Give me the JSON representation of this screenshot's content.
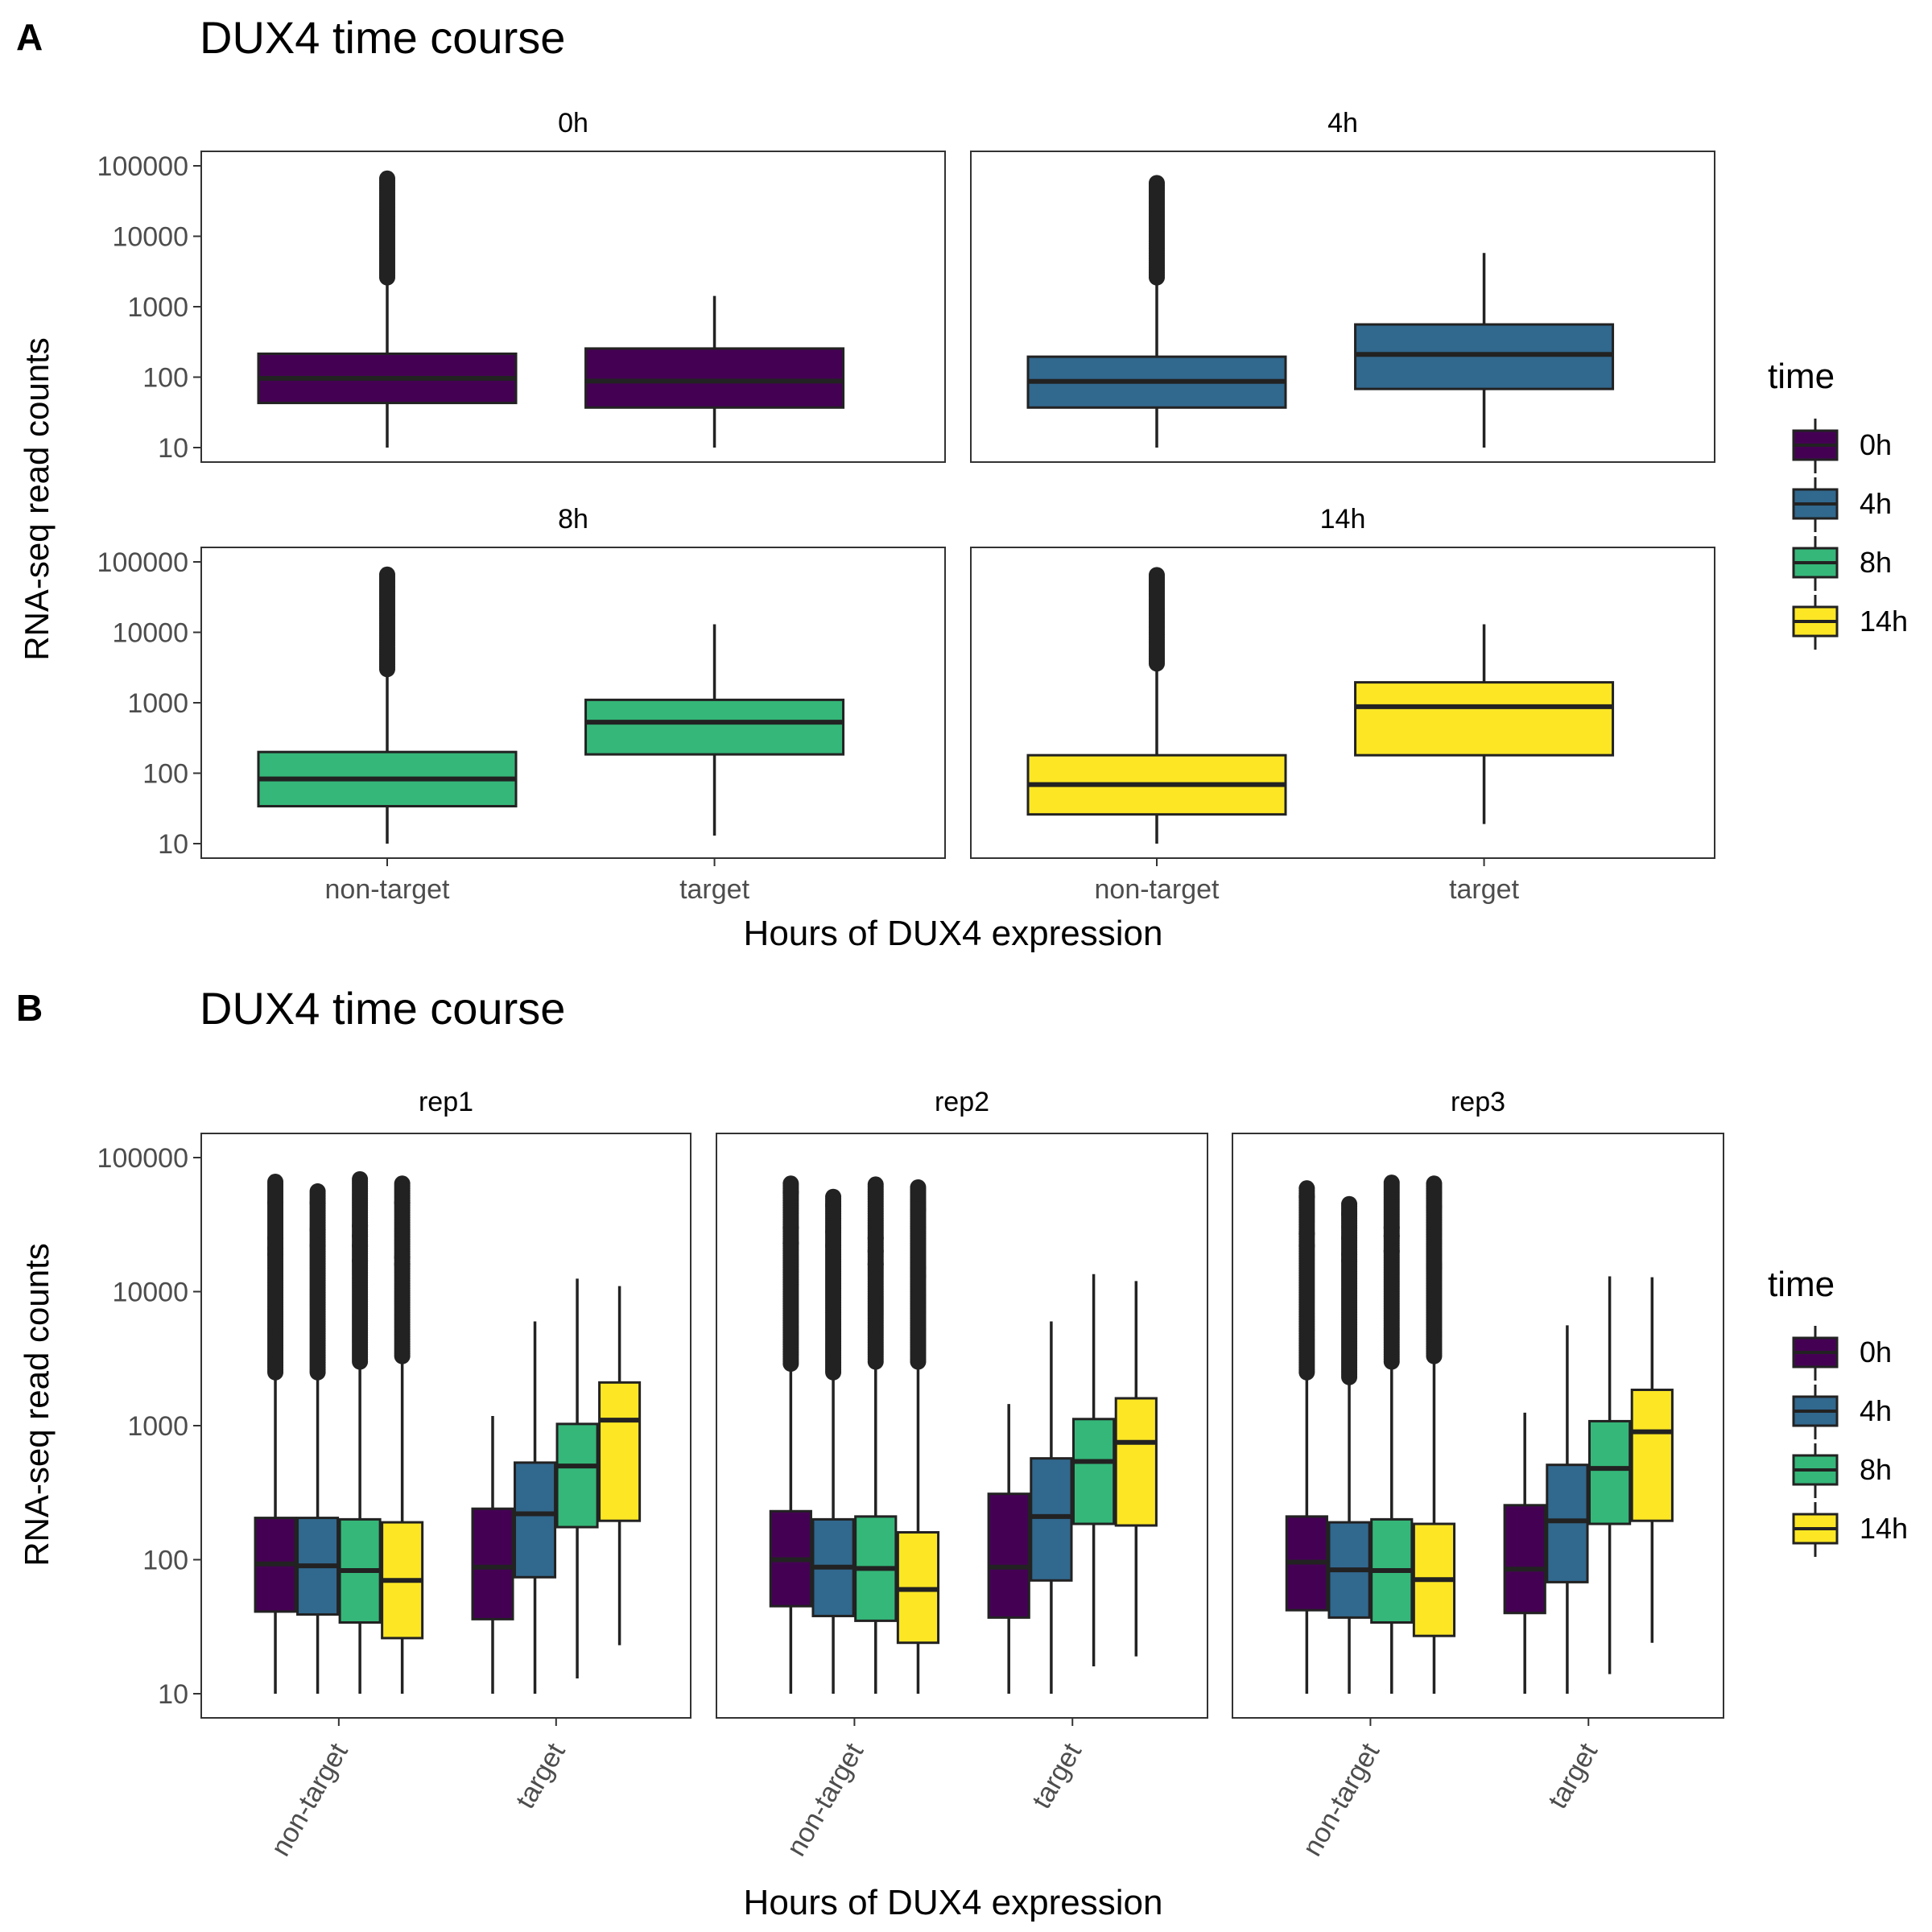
{
  "panels": [
    {
      "letter": "A",
      "title": "DUX4 time course",
      "xlabel": "Hours of DUX4 expression",
      "ylabel": "RNA-seq read counts",
      "legend": {
        "title": "time",
        "entries": [
          {
            "label": "0h",
            "color": "#440154"
          },
          {
            "label": "4h",
            "color": "#31688E"
          },
          {
            "label": "8h",
            "color": "#35B779"
          },
          {
            "label": "14h",
            "color": "#FDE725"
          }
        ]
      }
    },
    {
      "letter": "B",
      "title": "DUX4 time course",
      "xlabel": "Hours of DUX4 expression",
      "ylabel": "RNA-seq read counts",
      "legend": {
        "title": "time",
        "entries": [
          {
            "label": "0h",
            "color": "#440154"
          },
          {
            "label": "4h",
            "color": "#31688E"
          },
          {
            "label": "8h",
            "color": "#35B779"
          },
          {
            "label": "14h",
            "color": "#FDE725"
          }
        ]
      }
    }
  ],
  "chart_data": [
    {
      "type": "boxplot",
      "panel": "A",
      "title": "DUX4 time course",
      "xlabel": "Hours of DUX4 expression",
      "ylabel": "RNA-seq read counts",
      "y_scale": "log10",
      "ylim": [
        10,
        100000
      ],
      "y_ticks": [
        "10",
        "100",
        "1000",
        "10000",
        "100000"
      ],
      "categories": [
        "non-target",
        "target"
      ],
      "grid": false,
      "legend_position": "right",
      "facets": [
        {
          "label": "0h",
          "boxes": [
            {
              "category": "non-target",
              "time": "0h",
              "min": 10,
              "q1": 43,
              "median": 96,
              "q3": 215,
              "max": 2450,
              "outlier_min": 2600,
              "outlier_max": 66000
            },
            {
              "category": "target",
              "time": "0h",
              "min": 10,
              "q1": 37,
              "median": 88,
              "q3": 255,
              "max": 1420
            }
          ]
        },
        {
          "label": "4h",
          "boxes": [
            {
              "category": "non-target",
              "time": "4h",
              "min": 10,
              "q1": 37,
              "median": 87,
              "q3": 195,
              "max": 2400,
              "outlier_min": 2600,
              "outlier_max": 57000
            },
            {
              "category": "target",
              "time": "4h",
              "min": 10,
              "q1": 68,
              "median": 210,
              "q3": 560,
              "max": 5800
            }
          ]
        },
        {
          "label": "8h",
          "boxes": [
            {
              "category": "non-target",
              "time": "8h",
              "min": 10,
              "q1": 34,
              "median": 83,
              "q3": 200,
              "max": 2700,
              "outlier_min": 3000,
              "outlier_max": 66000
            },
            {
              "category": "target",
              "time": "8h",
              "min": 13,
              "q1": 185,
              "median": 530,
              "q3": 1100,
              "max": 13000
            }
          ]
        },
        {
          "label": "14h",
          "boxes": [
            {
              "category": "non-target",
              "time": "14h",
              "min": 10,
              "q1": 26,
              "median": 69,
              "q3": 180,
              "max": 3300,
              "outlier_min": 3600,
              "outlier_max": 65000
            },
            {
              "category": "target",
              "time": "14h",
              "min": 19,
              "q1": 180,
              "median": 880,
              "q3": 1950,
              "max": 13000
            }
          ]
        }
      ]
    },
    {
      "type": "boxplot",
      "panel": "B",
      "title": "DUX4 time course",
      "xlabel": "Hours of DUX4 expression",
      "ylabel": "RNA-seq read counts",
      "y_scale": "log10",
      "ylim": [
        10,
        100000
      ],
      "y_ticks": [
        "10",
        "100",
        "1000",
        "10000",
        "100000"
      ],
      "categories": [
        "non-target",
        "target"
      ],
      "series_names": [
        "0h",
        "4h",
        "8h",
        "14h"
      ],
      "grid": false,
      "legend_position": "right",
      "facets": [
        {
          "label": "rep1",
          "groups": [
            {
              "category": "non-target",
              "boxes": [
                {
                  "time": "0h",
                  "min": 10,
                  "q1": 41,
                  "median": 93,
                  "q3": 205,
                  "max": 2300,
                  "outlier_min": 2500,
                  "outlier_max": 66000,
                  "outliers_extra": [
                    46000,
                    25000,
                    21000,
                    19000
                  ]
                },
                {
                  "time": "4h",
                  "min": 10,
                  "q1": 39,
                  "median": 90,
                  "q3": 205,
                  "max": 2300,
                  "outlier_min": 2500,
                  "outlier_max": 56000,
                  "outliers_extra": [
                    46000,
                    29000,
                    22000
                  ]
                },
                {
                  "time": "8h",
                  "min": 10,
                  "q1": 34,
                  "median": 83,
                  "q3": 200,
                  "max": 2800,
                  "outlier_min": 3000,
                  "outlier_max": 69000,
                  "outliers_extra": [
                    31000,
                    26000,
                    22000,
                    17000
                  ]
                },
                {
                  "time": "14h",
                  "min": 10,
                  "q1": 26,
                  "median": 70,
                  "q3": 190,
                  "max": 3000,
                  "outlier_min": 3300,
                  "outlier_max": 64000,
                  "outliers_extra": [
                    46000,
                    18000,
                    16000
                  ]
                }
              ]
            },
            {
              "category": "target",
              "boxes": [
                {
                  "time": "0h",
                  "min": 10,
                  "q1": 36,
                  "median": 88,
                  "q3": 240,
                  "max": 1180
                },
                {
                  "time": "4h",
                  "min": 10,
                  "q1": 74,
                  "median": 220,
                  "q3": 530,
                  "max": 6000
                },
                {
                  "time": "8h",
                  "min": 13,
                  "q1": 175,
                  "median": 500,
                  "q3": 1030,
                  "max": 12500
                },
                {
                  "time": "14h",
                  "min": 23,
                  "q1": 195,
                  "median": 1100,
                  "q3": 2100,
                  "max": 11000
                }
              ]
            }
          ]
        },
        {
          "label": "rep2",
          "groups": [
            {
              "category": "non-target",
              "boxes": [
                {
                  "time": "0h",
                  "min": 10,
                  "q1": 45,
                  "median": 100,
                  "q3": 230,
                  "max": 2700,
                  "outlier_min": 2900,
                  "outlier_max": 64000,
                  "outliers_extra": [
                    55000,
                    30000,
                    23000
                  ]
                },
                {
                  "time": "4h",
                  "min": 10,
                  "q1": 38,
                  "median": 88,
                  "q3": 200,
                  "max": 2300,
                  "outlier_min": 2500,
                  "outlier_max": 51000,
                  "outliers_extra": [
                    44000,
                    28000,
                    22000
                  ]
                },
                {
                  "time": "8h",
                  "min": 10,
                  "q1": 35,
                  "median": 86,
                  "q3": 210,
                  "max": 2800,
                  "outlier_min": 3000,
                  "outlier_max": 63000,
                  "outliers_extra": [
                    25000,
                    20000,
                    16000
                  ]
                },
                {
                  "time": "14h",
                  "min": 10,
                  "q1": 24,
                  "median": 60,
                  "q3": 160,
                  "max": 2700,
                  "outlier_min": 3000,
                  "outlier_max": 60000,
                  "outliers_extra": [
                    41000,
                    15000,
                    13000
                  ]
                }
              ]
            },
            {
              "category": "target",
              "boxes": [
                {
                  "time": "0h",
                  "min": 10,
                  "q1": 37,
                  "median": 88,
                  "q3": 310,
                  "max": 1450
                },
                {
                  "time": "4h",
                  "min": 10,
                  "q1": 70,
                  "median": 210,
                  "q3": 570,
                  "max": 6000
                },
                {
                  "time": "8h",
                  "min": 16,
                  "q1": 185,
                  "median": 540,
                  "q3": 1120,
                  "max": 13500
                },
                {
                  "time": "14h",
                  "min": 19,
                  "q1": 180,
                  "median": 750,
                  "q3": 1600,
                  "max": 12000
                }
              ]
            }
          ]
        },
        {
          "label": "rep3",
          "groups": [
            {
              "category": "non-target",
              "boxes": [
                {
                  "time": "0h",
                  "min": 10,
                  "q1": 42,
                  "median": 96,
                  "q3": 210,
                  "max": 2300,
                  "outlier_min": 2500,
                  "outlier_max": 59000,
                  "outliers_extra": [
                    51000,
                    27000,
                    22000
                  ]
                },
                {
                  "time": "4h",
                  "min": 10,
                  "q1": 37,
                  "median": 84,
                  "q3": 190,
                  "max": 2100,
                  "outlier_min": 2300,
                  "outlier_max": 45000,
                  "outliers_extra": [
                    38000,
                    25000,
                    19000,
                    17000
                  ]
                },
                {
                  "time": "8h",
                  "min": 10,
                  "q1": 34,
                  "median": 83,
                  "q3": 200,
                  "max": 2800,
                  "outlier_min": 3000,
                  "outlier_max": 65000,
                  "outliers_extra": [
                    30000,
                    26000,
                    20000
                  ]
                },
                {
                  "time": "14h",
                  "min": 10,
                  "q1": 27,
                  "median": 71,
                  "q3": 185,
                  "max": 3000,
                  "outlier_min": 3300,
                  "outlier_max": 64000,
                  "outliers_extra": [
                    43000,
                    16000,
                    15000
                  ]
                }
              ]
            },
            {
              "category": "target",
              "boxes": [
                {
                  "time": "0h",
                  "min": 10,
                  "q1": 40,
                  "median": 85,
                  "q3": 255,
                  "max": 1250
                },
                {
                  "time": "4h",
                  "min": 10,
                  "q1": 68,
                  "median": 195,
                  "q3": 510,
                  "max": 5600
                },
                {
                  "time": "8h",
                  "min": 14,
                  "q1": 185,
                  "median": 480,
                  "q3": 1080,
                  "max": 13000
                },
                {
                  "time": "14h",
                  "min": 24,
                  "q1": 195,
                  "median": 900,
                  "q3": 1850,
                  "max": 12800
                }
              ]
            }
          ]
        }
      ]
    }
  ]
}
